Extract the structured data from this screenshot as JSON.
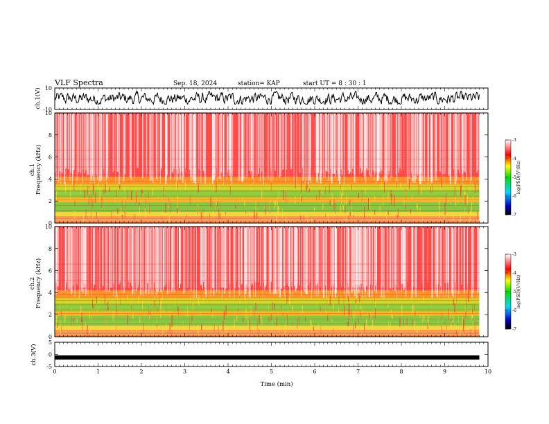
{
  "header": {
    "title": "VLF Spectra",
    "date": "Sep. 18, 2024",
    "station": "station= KAP",
    "start": "start  UT =   8 : 30 : 1"
  },
  "chart_data": [
    {
      "type": "line",
      "name": "ch1-waveform",
      "ylabel": "ch.1(V)",
      "ylim": [
        -10,
        10
      ],
      "yticks": [
        "10",
        "-10"
      ],
      "xlim": [
        0,
        10
      ],
      "description_points": "dense noisy waveform spanning roughly -5 to 7 V over the full 0–9.8 min interval"
    },
    {
      "type": "heatmap",
      "name": "ch1-spectrogram",
      "ylabel": "ch.1\nFrequency (kHz)",
      "ylabel_lines": [
        "ch.1",
        "Frequency  (kHz)"
      ],
      "ylim": [
        0,
        10
      ],
      "yticks": [
        "0",
        "2",
        "4",
        "6",
        "8",
        "10"
      ],
      "xlim": [
        0,
        10
      ],
      "data_end_min": 9.8,
      "colorbar": {
        "label": "log(PSD)(V²/Hz)",
        "range": [
          -7,
          -3
        ],
        "ticks": [
          "-3",
          "-4",
          "-5",
          "-6",
          "-7"
        ]
      }
    },
    {
      "type": "heatmap",
      "name": "ch2-spectrogram",
      "ylabel_lines": [
        "ch.2",
        "Frequency  (kHz)"
      ],
      "ylim": [
        0,
        10
      ],
      "yticks": [
        "0",
        "2",
        "4",
        "6",
        "8",
        "10"
      ],
      "xlim": [
        0,
        10
      ],
      "data_end_min": 9.8,
      "colorbar": {
        "label": "log(PSD)(V²/Hz)",
        "range": [
          -7,
          -3
        ],
        "ticks": [
          "-3",
          "-4",
          "-5",
          "-6",
          "-7"
        ]
      }
    },
    {
      "type": "line",
      "name": "ch3-waveform",
      "ylabel": "ch.3(V)",
      "ylim": [
        -5,
        5
      ],
      "yticks": [
        "5",
        "0",
        "-5"
      ],
      "xlim": [
        0,
        10
      ],
      "xticks": [
        "0",
        "1",
        "2",
        "3",
        "4",
        "5",
        "6",
        "7",
        "8",
        "9",
        "10"
      ],
      "xlabel": "Time  (min)",
      "level": -1.3
    }
  ]
}
